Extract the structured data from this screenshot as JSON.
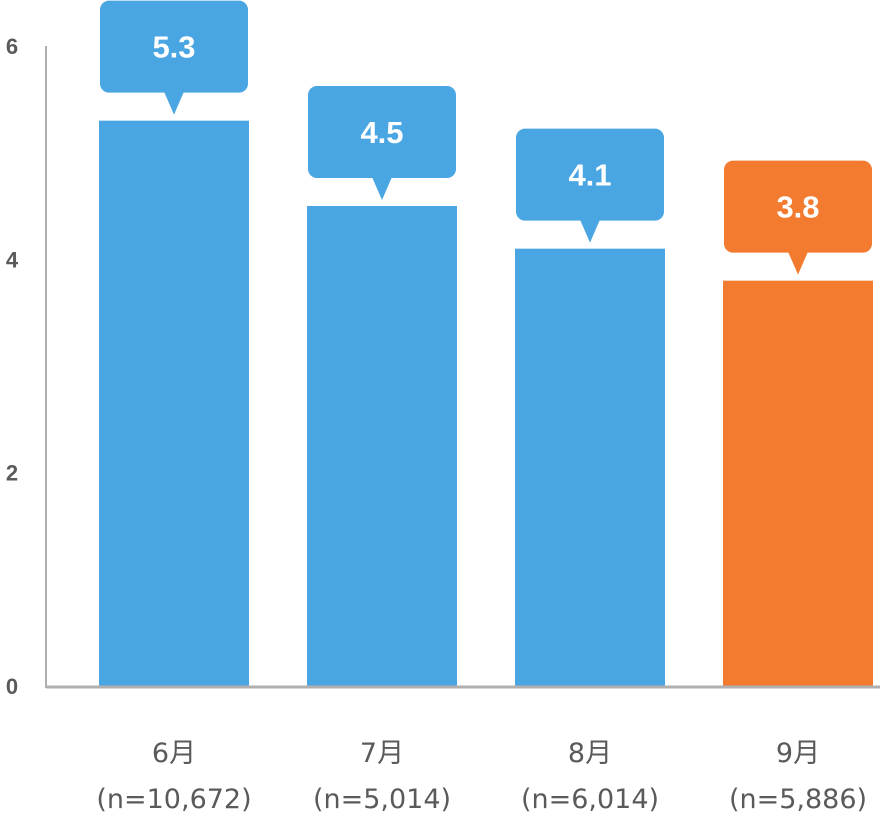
{
  "chart_data": {
    "type": "bar",
    "categories": [
      "6月",
      "7月",
      "8月",
      "9月"
    ],
    "sample_sizes": [
      "(n=10,672)",
      "(n=5,014)",
      "(n=6,014)",
      "(n=5,886)"
    ],
    "values": [
      5.3,
      4.5,
      4.1,
      3.8
    ],
    "value_labels": [
      "5.3",
      "4.5",
      "4.1",
      "3.8"
    ],
    "y_ticks": [
      "0",
      "2",
      "4",
      "6"
    ],
    "ylim": [
      0,
      6
    ],
    "title": "",
    "xlabel": "",
    "ylabel": "",
    "grid": false,
    "colors": {
      "default": "#4aa6e2",
      "highlight": "#f27b30",
      "axis": "#b0b0b0"
    },
    "highlight_index": 3
  }
}
